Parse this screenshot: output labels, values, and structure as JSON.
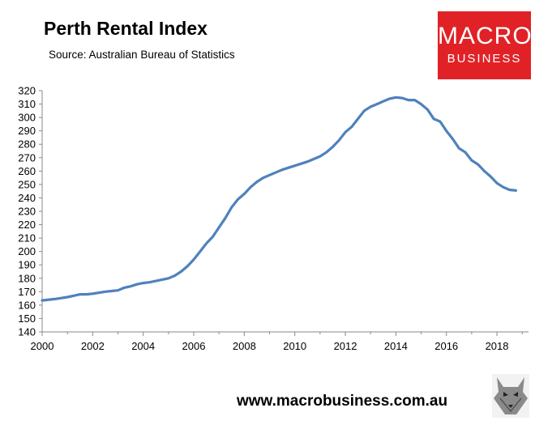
{
  "title": "Perth Rental Index",
  "subtitle": "Source: Australian Bureau of Statistics",
  "logo": {
    "line1": "MACRO",
    "line2": "BUSINESS",
    "color": "#e02227"
  },
  "footer": {
    "url": "www.macrobusiness.com.au"
  },
  "chart_data": {
    "type": "line",
    "title": "Perth Rental Index",
    "xlabel": "",
    "ylabel": "",
    "xlim": [
      2000,
      2019.25
    ],
    "ylim": [
      140,
      320
    ],
    "xticks": [
      2000,
      2002,
      2004,
      2006,
      2008,
      2010,
      2012,
      2014,
      2016,
      2018
    ],
    "yticks": [
      140,
      150,
      160,
      170,
      180,
      190,
      200,
      210,
      220,
      230,
      240,
      250,
      260,
      270,
      280,
      290,
      300,
      310,
      320
    ],
    "grid": false,
    "legend": "none",
    "series": [
      {
        "color": "#4f81bd",
        "x": [
          2000,
          2000.5,
          2001,
          2001.25,
          2001.5,
          2001.75,
          2002,
          2002.5,
          2002.75,
          2003,
          2003.25,
          2003.5,
          2003.75,
          2004,
          2004.25,
          2004.5,
          2004.75,
          2005,
          2005.25,
          2005.5,
          2005.75,
          2006,
          2006.25,
          2006.5,
          2006.75,
          2007,
          2007.25,
          2007.5,
          2007.75,
          2008,
          2008.25,
          2008.5,
          2008.75,
          2009,
          2009.5,
          2010,
          2010.5,
          2011,
          2011.25,
          2011.5,
          2011.75,
          2012,
          2012.25,
          2012.5,
          2012.75,
          2013,
          2013.25,
          2013.5,
          2013.75,
          2014,
          2014.25,
          2014.5,
          2014.75,
          2015,
          2015.25,
          2015.5,
          2015.75,
          2016,
          2016.25,
          2016.5,
          2016.75,
          2017,
          2017.25,
          2017.5,
          2017.75,
          2018,
          2018.25,
          2018.5,
          2018.75
        ],
        "y": [
          163.5,
          164.5,
          166,
          167,
          168,
          168,
          168.5,
          170,
          170.5,
          171,
          173,
          174,
          175.5,
          176.5,
          177,
          178,
          179,
          180,
          182,
          185,
          189,
          194,
          200,
          206,
          211,
          218,
          225,
          233,
          239,
          243,
          248,
          252,
          255,
          257,
          261,
          264,
          267,
          271,
          274,
          278,
          283,
          289,
          293,
          299,
          305,
          308,
          310,
          312,
          314,
          315,
          314.5,
          313,
          313,
          310,
          306,
          299,
          297,
          290,
          284,
          277,
          274,
          268,
          265,
          260,
          256,
          251,
          248,
          246,
          245.5
        ]
      }
    ]
  }
}
